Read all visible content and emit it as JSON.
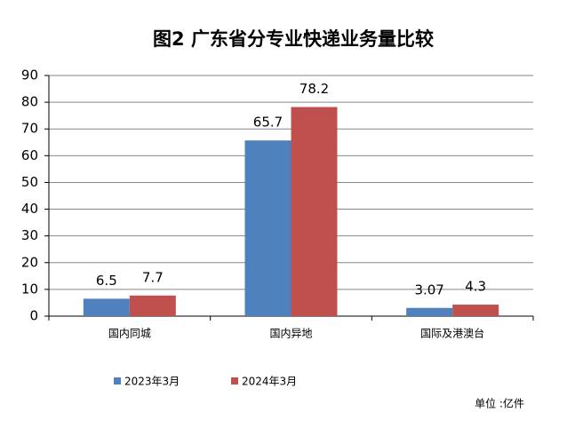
{
  "chart_data": {
    "type": "bar",
    "title": "图2 广东省分专业快递业务量比较",
    "unit_note": "单位 :亿件",
    "categories": [
      "国内同城",
      "国内异地",
      "国际及港澳台"
    ],
    "series": [
      {
        "name": "2023年3月",
        "color": "#4f81bd",
        "values": [
          6.5,
          65.7,
          3.07
        ]
      },
      {
        "name": "2024年3月",
        "color": "#c0504d",
        "values": [
          7.7,
          78.2,
          4.3
        ]
      }
    ],
    "ylim": [
      0,
      90
    ],
    "yticks": [
      0,
      10,
      20,
      30,
      40,
      50,
      60,
      70,
      80,
      90
    ],
    "grid": true
  }
}
